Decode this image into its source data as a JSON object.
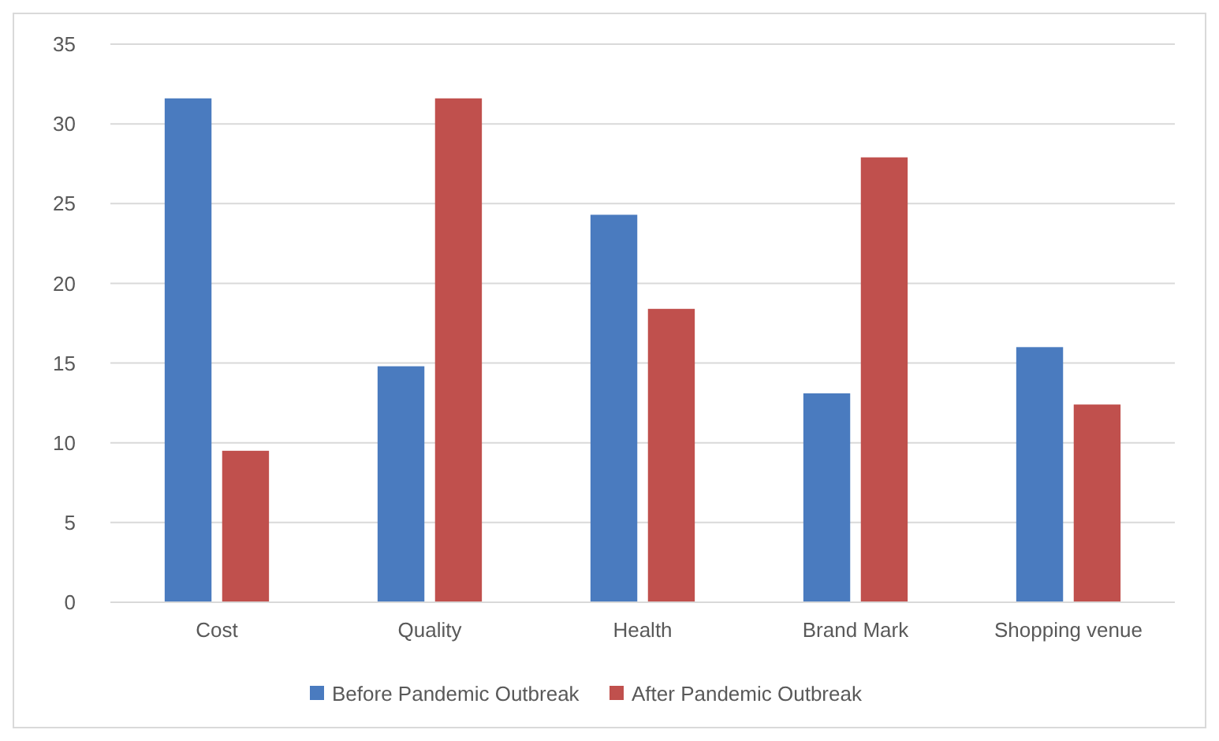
{
  "chart_data": {
    "type": "bar",
    "categories": [
      "Cost",
      "Quality",
      "Health",
      "Brand Mark",
      "Shopping venue"
    ],
    "series": [
      {
        "name": "Before Pandemic Outbreak",
        "color": "#4a7bbf",
        "values": [
          31.6,
          14.8,
          24.3,
          13.1,
          16.0
        ]
      },
      {
        "name": "After Pandemic Outbreak",
        "color": "#c0504d",
        "values": [
          9.5,
          31.6,
          18.4,
          27.9,
          12.4
        ]
      }
    ],
    "ylim": [
      0,
      35
    ],
    "yticks": [
      0,
      5,
      10,
      15,
      20,
      25,
      30,
      35
    ],
    "grid": "y",
    "legend": "bottom"
  }
}
